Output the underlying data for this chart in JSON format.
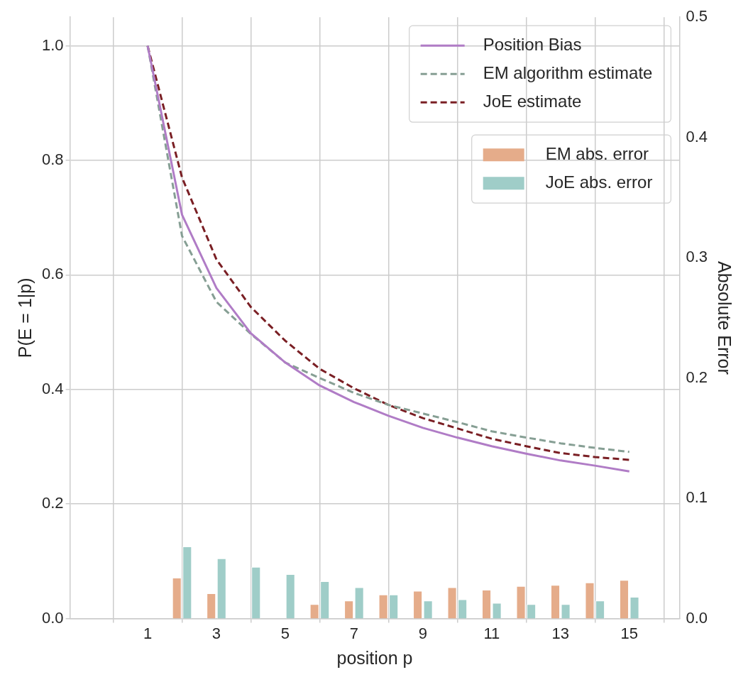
{
  "chart_data": {
    "type": "line",
    "xlabel": "position p",
    "ylabel": "P(E = 1|p)",
    "y2label": "Absolute Error",
    "x": [
      1,
      2,
      3,
      4,
      5,
      6,
      7,
      8,
      9,
      10,
      11,
      12,
      13,
      14,
      15
    ],
    "xlim": [
      -0.15,
      15.35
    ],
    "xticks": [
      1,
      3,
      5,
      7,
      9,
      11,
      13,
      15
    ],
    "ylim": [
      0,
      1.05
    ],
    "yticks": [
      {
        "value": 0,
        "label": "0.0"
      },
      0.2,
      0.4,
      0.6,
      0.8,
      {
        "value": 1,
        "label": "1.0"
      }
    ],
    "y2lim": [
      0,
      0.5
    ],
    "y2ticks": [
      {
        "value": 0,
        "label": "0.0"
      },
      0.1,
      0.2,
      0.3,
      0.4,
      0.5
    ],
    "grid": true,
    "legend": "top right",
    "marker": "none",
    "series": [
      {
        "name": "Position Bias",
        "line_style": "solid",
        "color": "#b07cc6",
        "values": [
          1.0,
          0.705,
          0.577,
          0.498,
          0.447,
          0.407,
          0.378,
          0.354,
          0.333,
          0.316,
          0.301,
          0.288,
          0.276,
          0.267,
          0.257
        ]
      },
      {
        "name": "EM algorithm estimate",
        "line_style": "dashed",
        "color": "#869f94",
        "values": [
          1.0,
          0.668,
          0.553,
          0.497,
          0.447,
          0.42,
          0.394,
          0.373,
          0.358,
          0.343,
          0.327,
          0.316,
          0.306,
          0.298,
          0.291
        ]
      },
      {
        "name": "JoE estimate",
        "line_style": "dashed",
        "color": "#7a1f24",
        "values": [
          1.0,
          0.77,
          0.627,
          0.544,
          0.485,
          0.436,
          0.402,
          0.373,
          0.35,
          0.332,
          0.314,
          0.301,
          0.289,
          0.282,
          0.277
        ]
      },
      {
        "name": "EM abs. error",
        "type": "bar",
        "axis": "y2",
        "color": "#e5ac8a",
        "values": [
          0,
          0.034,
          0.021,
          0,
          0,
          0.012,
          0.015,
          0.02,
          0.023,
          0.026,
          0.024,
          0.027,
          0.028,
          0.03,
          0.032
        ]
      },
      {
        "name": "JoE abs. error",
        "type": "bar",
        "axis": "y2",
        "color": "#9fcdc8",
        "values": [
          0,
          0.06,
          0.05,
          0.043,
          0.037,
          0.031,
          0.026,
          0.02,
          0.015,
          0.016,
          0.013,
          0.012,
          0.012,
          0.015,
          0.018
        ]
      }
    ]
  }
}
